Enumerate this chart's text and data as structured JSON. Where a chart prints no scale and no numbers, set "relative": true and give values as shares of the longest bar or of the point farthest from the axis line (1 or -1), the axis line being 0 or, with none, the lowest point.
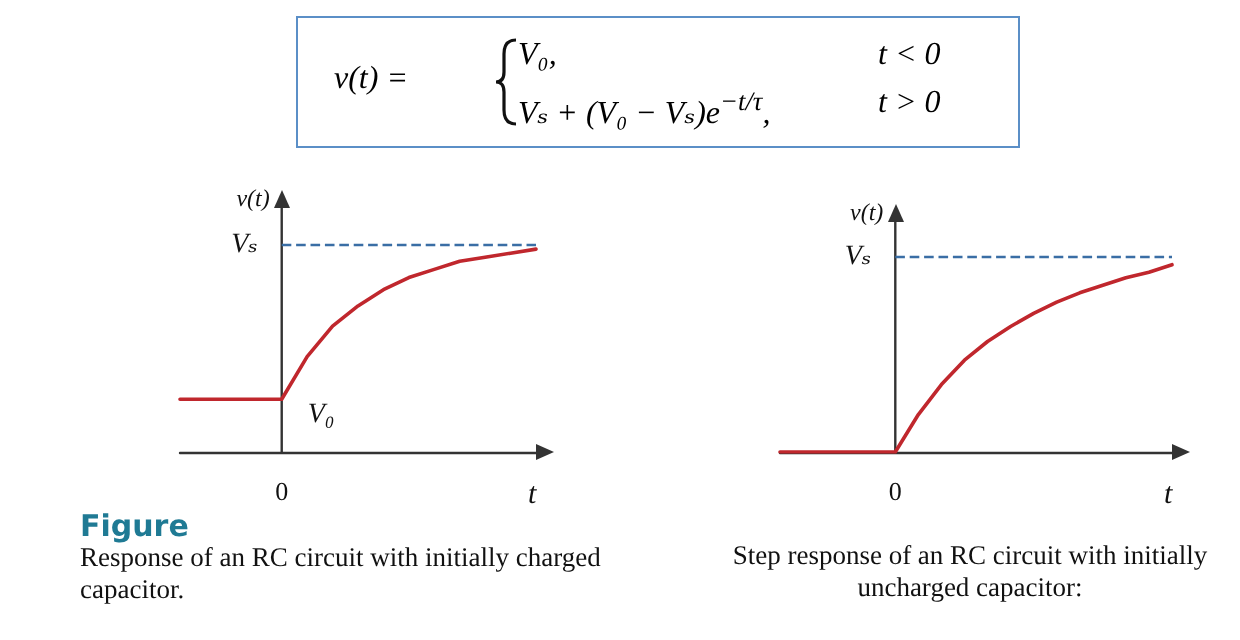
{
  "chart_data": [
    {
      "type": "other",
      "annotations": [
        "v(t) =",
        "V₀,",
        "t < 0",
        "Vₛ + (V₀ − Vₛ)e$^{−t/τ}$,",
        "t > 0"
      ]
    },
    {
      "type": "line",
      "relative": true,
      "title": "Figure",
      "subtitle": "Response of an RC circuit with initially charged capacitor.",
      "xlabel": "t",
      "ylabel": "v(t)",
      "marker": "none",
      "categories": [
        null,
        null,
        null,
        null,
        null,
        null,
        null,
        null,
        null,
        null,
        null,
        null,
        null,
        null,
        null
      ],
      "series": [
        {
          "color": "#c0272d",
          "values": [
            0.26,
            0.26,
            0.26,
            0.26,
            0.26,
            0.47,
            0.62,
            0.72,
            0.8,
            0.86,
            0.9,
            0.94,
            0.96,
            0.98,
            1.0
          ]
        }
      ],
      "ref_lines": [
        {
          "axis": "y",
          "value": 1.02,
          "label": "Vₛ",
          "color": "#3a6ea5",
          "line_style": "dashed"
        }
      ],
      "annotations": [
        "V₀",
        "0"
      ]
    },
    {
      "type": "line",
      "relative": true,
      "title": "Step response of an RC circuit with initially uncharged capacitor:",
      "xlabel": "t",
      "ylabel": "v(t)",
      "marker": "none",
      "categories": [
        null,
        null,
        null,
        null,
        null,
        null,
        null,
        null,
        null,
        null,
        null,
        null,
        null,
        null,
        null,
        null,
        null,
        null
      ],
      "series": [
        {
          "color": "#c0272d",
          "values": [
            0,
            0,
            0,
            0,
            0,
            0,
            0.2,
            0.36,
            0.49,
            0.59,
            0.67,
            0.74,
            0.8,
            0.85,
            0.89,
            0.93,
            0.96,
            1.0
          ]
        }
      ],
      "ref_lines": [
        {
          "axis": "y",
          "value": 1.04,
          "label": "Vₛ",
          "color": "#3a6ea5",
          "line_style": "dashed"
        }
      ],
      "annotations": [
        "0"
      ]
    }
  ]
}
